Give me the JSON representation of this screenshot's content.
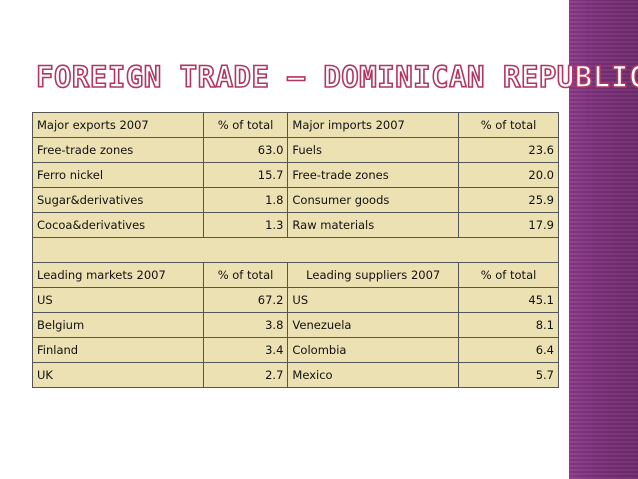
{
  "title": "Foreign Trade – Dominican Republic",
  "colors": {
    "accent": "#b2365f",
    "table_bg": "#ece1b2",
    "side_band": "#7a2f78"
  },
  "table": {
    "header1": [
      "Major exports 2007",
      "% of total",
      "Major imports 2007",
      "% of total"
    ],
    "rows1": [
      [
        "Free-trade zones",
        "63.0",
        "Fuels",
        "23.6"
      ],
      [
        "Ferro nickel",
        "15.7",
        "Free-trade zones",
        "20.0"
      ],
      [
        "Sugar&derivatives",
        "1.8",
        "Consumer goods",
        "25.9"
      ],
      [
        "Cocoa&derivatives",
        "1.3",
        "Raw materials",
        "17.9"
      ]
    ],
    "header2": [
      "Leading markets 2007",
      "% of total",
      "Leading suppliers 2007",
      "% of total"
    ],
    "rows2": [
      [
        "US",
        "67.2",
        "US",
        "45.1"
      ],
      [
        "Belgium",
        "3.8",
        "Venezuela",
        "8.1"
      ],
      [
        "Finland",
        "3.4",
        "Colombia",
        "6.4"
      ],
      [
        "UK",
        "2.7",
        "Mexico",
        "5.7"
      ]
    ]
  }
}
